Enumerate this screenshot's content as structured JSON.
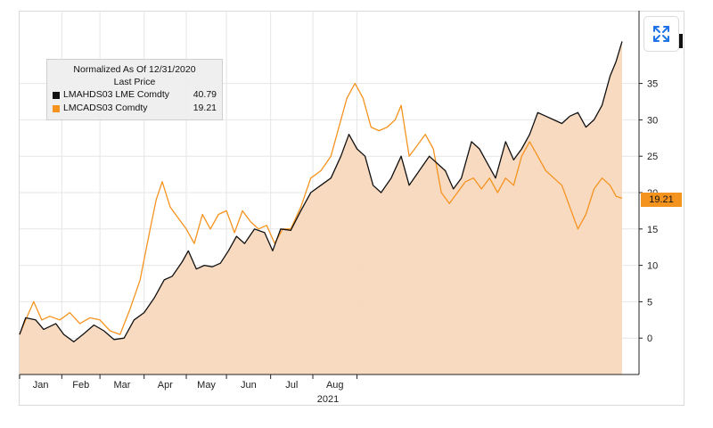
{
  "chart_data": {
    "type": "line",
    "legend_title": "Normalized As Of 12/31/2020",
    "legend_subtitle": "Last Price",
    "xlabel": "2021",
    "x_tick_labels": [
      "Jan",
      "Feb",
      "Mar",
      "Apr",
      "May",
      "Jun",
      "Jul",
      "Aug"
    ],
    "ylim": [
      -5,
      45
    ],
    "y_ticks": [
      0,
      5,
      10,
      15,
      20,
      25,
      30,
      35
    ],
    "y_tick_labels": [
      "0",
      "5",
      "10",
      "15",
      "20",
      "25",
      "30",
      "35"
    ],
    "series": [
      {
        "name": "LMAHDS03 LME Comdty",
        "last_value": "40.79",
        "color": "#111111",
        "points": [
          [
            0,
            0.5
          ],
          [
            3,
            2.8
          ],
          [
            8,
            2.5
          ],
          [
            12,
            1.2
          ],
          [
            18,
            2.0
          ],
          [
            22,
            0.5
          ],
          [
            27,
            -0.5
          ],
          [
            32,
            0.6
          ],
          [
            37,
            1.8
          ],
          [
            42,
            1.0
          ],
          [
            47,
            -0.2
          ],
          [
            52,
            0.0
          ],
          [
            57,
            2.5
          ],
          [
            62,
            3.5
          ],
          [
            67,
            5.5
          ],
          [
            72,
            8.0
          ],
          [
            76,
            8.5
          ],
          [
            81,
            10.5
          ],
          [
            84,
            12.0
          ],
          [
            88,
            9.5
          ],
          [
            92,
            10.0
          ],
          [
            96,
            9.8
          ],
          [
            100,
            10.3
          ],
          [
            104,
            12.0
          ],
          [
            108,
            14.0
          ],
          [
            112,
            13.0
          ],
          [
            117,
            15.0
          ],
          [
            122,
            14.5
          ],
          [
            126,
            12.0
          ],
          [
            130,
            15.0
          ],
          [
            135,
            14.8
          ],
          [
            140,
            17.5
          ],
          [
            145,
            20.0
          ],
          [
            150,
            21.0
          ],
          [
            155,
            22.0
          ],
          [
            160,
            25.0
          ],
          [
            164,
            28.0
          ],
          [
            168,
            26.0
          ],
          [
            172,
            25.0
          ],
          [
            176,
            21.0
          ],
          [
            180,
            20.0
          ],
          [
            185,
            22.0
          ],
          [
            190,
            25.0
          ],
          [
            194,
            21.0
          ],
          [
            199,
            23.0
          ],
          [
            204,
            25.0
          ],
          [
            208,
            24.0
          ],
          [
            212,
            23.0
          ],
          [
            216,
            20.5
          ],
          [
            220,
            22.0
          ],
          [
            225,
            27.0
          ],
          [
            229,
            26.0
          ],
          [
            233,
            24.0
          ],
          [
            237,
            22.0
          ],
          [
            242,
            27.0
          ],
          [
            246,
            24.5
          ],
          [
            250,
            26.0
          ],
          [
            254,
            28.0
          ],
          [
            258,
            31.0
          ],
          [
            262,
            30.5
          ],
          [
            266,
            30.0
          ],
          [
            270,
            29.5
          ],
          [
            274,
            30.5
          ],
          [
            278,
            31.0
          ],
          [
            282,
            29.0
          ],
          [
            286,
            30.0
          ],
          [
            290,
            32.0
          ],
          [
            294,
            36.0
          ],
          [
            297,
            38.0
          ],
          [
            300,
            40.79
          ]
        ]
      },
      {
        "name": "LMCADS03 Comdty",
        "last_value": "19.21",
        "color": "#f5931f",
        "points": [
          [
            0,
            0.5
          ],
          [
            3,
            2.5
          ],
          [
            7,
            5.0
          ],
          [
            11,
            2.5
          ],
          [
            15,
            3.0
          ],
          [
            20,
            2.5
          ],
          [
            25,
            3.5
          ],
          [
            30,
            2.0
          ],
          [
            35,
            2.8
          ],
          [
            40,
            2.5
          ],
          [
            45,
            1.0
          ],
          [
            50,
            0.5
          ],
          [
            55,
            4.0
          ],
          [
            60,
            8.0
          ],
          [
            65,
            15.0
          ],
          [
            68,
            19.0
          ],
          [
            71,
            21.5
          ],
          [
            75,
            18.0
          ],
          [
            79,
            16.5
          ],
          [
            83,
            15.0
          ],
          [
            87,
            13.0
          ],
          [
            91,
            17.0
          ],
          [
            95,
            15.0
          ],
          [
            99,
            17.0
          ],
          [
            103,
            17.5
          ],
          [
            107,
            14.5
          ],
          [
            111,
            17.5
          ],
          [
            115,
            16.0
          ],
          [
            119,
            15.0
          ],
          [
            123,
            15.5
          ],
          [
            127,
            13.0
          ],
          [
            131,
            15.0
          ],
          [
            135,
            15.0
          ],
          [
            140,
            18.0
          ],
          [
            145,
            22.0
          ],
          [
            150,
            23.0
          ],
          [
            155,
            25.0
          ],
          [
            160,
            30.0
          ],
          [
            163,
            33.0
          ],
          [
            167,
            35.0
          ],
          [
            171,
            33.0
          ],
          [
            175,
            29.0
          ],
          [
            179,
            28.5
          ],
          [
            183,
            29.0
          ],
          [
            187,
            30.0
          ],
          [
            190,
            32.0
          ],
          [
            194,
            25.0
          ],
          [
            198,
            26.5
          ],
          [
            202,
            28.0
          ],
          [
            206,
            26.0
          ],
          [
            210,
            20.0
          ],
          [
            214,
            18.5
          ],
          [
            218,
            20.0
          ],
          [
            222,
            21.5
          ],
          [
            226,
            22.0
          ],
          [
            230,
            20.5
          ],
          [
            234,
            22.0
          ],
          [
            238,
            20.0
          ],
          [
            242,
            22.0
          ],
          [
            246,
            21.0
          ],
          [
            250,
            25.0
          ],
          [
            254,
            27.0
          ],
          [
            258,
            25.0
          ],
          [
            262,
            23.0
          ],
          [
            266,
            22.0
          ],
          [
            270,
            21.0
          ],
          [
            274,
            18.0
          ],
          [
            278,
            15.0
          ],
          [
            282,
            17.0
          ],
          [
            286,
            20.5
          ],
          [
            290,
            22.0
          ],
          [
            294,
            21.0
          ],
          [
            297,
            19.5
          ],
          [
            300,
            19.21
          ]
        ]
      }
    ]
  },
  "icons": {
    "expand": "expand-arrows-icon"
  }
}
